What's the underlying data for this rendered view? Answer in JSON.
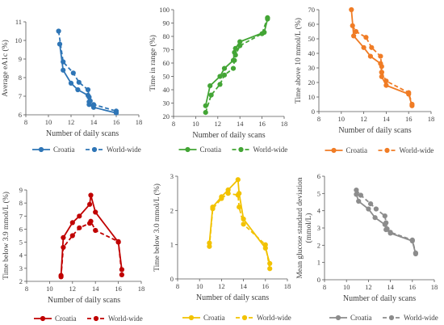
{
  "chart_data": [
    {
      "type": "line",
      "ylabel": "Average eA1c (%)",
      "xlabel": "Number of daily scans",
      "xlim": [
        8,
        18
      ],
      "ylim": [
        6,
        11
      ],
      "xticks": [
        "8",
        "10",
        "12",
        "14",
        "16",
        "18"
      ],
      "yticks": [
        "6",
        "7",
        "8",
        "9",
        "10",
        "11"
      ],
      "grid": false,
      "legend": "bottom",
      "color": "#2e75b6",
      "series": [
        {
          "name": "Croatia",
          "style": "solid",
          "points": [
            [
              11.0,
              9.8
            ],
            [
              11.3,
              8.4
            ],
            [
              12.0,
              7.7
            ],
            [
              12.6,
              7.35
            ],
            [
              13.5,
              7.05
            ],
            [
              13.6,
              6.7
            ],
            [
              13.6,
              6.55
            ],
            [
              14.0,
              6.4
            ],
            [
              16.0,
              6.1
            ]
          ]
        },
        {
          "name": "World-wide",
          "style": "dashed",
          "points": [
            [
              10.9,
              10.5
            ],
            [
              11.3,
              8.85
            ],
            [
              12.2,
              8.25
            ],
            [
              12.7,
              7.75
            ],
            [
              13.5,
              7.35
            ],
            [
              13.6,
              6.95
            ],
            [
              13.7,
              6.75
            ],
            [
              14.0,
              6.55
            ],
            [
              16.0,
              6.2
            ]
          ]
        }
      ]
    },
    {
      "type": "line",
      "ylabel": "Time in range (%)",
      "xlabel": "Number of daily scans",
      "xlim": [
        8,
        18
      ],
      "ylim": [
        20,
        100
      ],
      "xticks": [
        "8",
        "10",
        "12",
        "14",
        "16",
        "18"
      ],
      "yticks": [
        "20",
        "30",
        "40",
        "50",
        "60",
        "70",
        "80",
        "90",
        "100"
      ],
      "grid": false,
      "legend": "bottom",
      "color": "#43a535",
      "series": [
        {
          "name": "Croatia",
          "style": "solid",
          "points": [
            [
              10.9,
              28
            ],
            [
              11.3,
              43
            ],
            [
              12.2,
              50
            ],
            [
              12.6,
              56
            ],
            [
              13.4,
              62
            ],
            [
              13.5,
              68
            ],
            [
              13.6,
              71
            ],
            [
              14.0,
              76
            ],
            [
              16.2,
              83
            ],
            [
              16.5,
              93
            ]
          ]
        },
        {
          "name": "World-wide",
          "style": "dashed",
          "points": [
            [
              10.9,
              23
            ],
            [
              11.4,
              36
            ],
            [
              12.2,
              44
            ],
            [
              12.6,
              51
            ],
            [
              13.4,
              56
            ],
            [
              13.5,
              62
            ],
            [
              13.6,
              66
            ],
            [
              14.0,
              73
            ],
            [
              16.0,
              82
            ],
            [
              16.5,
              94
            ]
          ]
        }
      ]
    },
    {
      "type": "line",
      "ylabel": "Time above 10 mmol/L (%)",
      "xlabel": "Number of daily scans",
      "xlim": [
        8,
        18
      ],
      "ylim": [
        0,
        70
      ],
      "xticks": [
        "8",
        "10",
        "12",
        "14",
        "16",
        "18"
      ],
      "yticks": [
        "0",
        "10",
        "20",
        "30",
        "40",
        "50",
        "60",
        "70"
      ],
      "grid": false,
      "legend": "bottom",
      "color": "#f07c25",
      "series": [
        {
          "name": "Croatia",
          "style": "solid",
          "points": [
            [
              10.9,
              70
            ],
            [
              11.1,
              52
            ],
            [
              12.0,
              44
            ],
            [
              12.6,
              38
            ],
            [
              13.5,
              33
            ],
            [
              13.6,
              27
            ],
            [
              13.6,
              24
            ],
            [
              14.0,
              18
            ],
            [
              16.0,
              12
            ],
            [
              16.3,
              4
            ]
          ]
        },
        {
          "name": "World-wide",
          "style": "dashed",
          "points": [
            [
              11.0,
              59
            ],
            [
              11.3,
              55
            ],
            [
              12.2,
              51
            ],
            [
              12.7,
              44
            ],
            [
              13.5,
              38
            ],
            [
              13.6,
              31
            ],
            [
              13.6,
              27
            ],
            [
              14.0,
              21
            ],
            [
              16.0,
              13
            ],
            [
              16.3,
              5
            ]
          ]
        }
      ]
    },
    {
      "type": "line",
      "ylabel": "Time below 3.9 mmol/L (%)",
      "xlabel": "Number of daily scans",
      "xlim": [
        8,
        18
      ],
      "ylim": [
        2,
        9
      ],
      "xticks": [
        "8",
        "10",
        "12",
        "14",
        "16",
        "18"
      ],
      "yticks": [
        "2",
        "3",
        "4",
        "5",
        "6",
        "7",
        "8",
        "9"
      ],
      "grid": false,
      "legend": "bottom",
      "color": "#c00000",
      "series": [
        {
          "name": "Croatia",
          "style": "solid",
          "points": [
            [
              11.0,
              2.45
            ],
            [
              11.2,
              5.35
            ],
            [
              12.0,
              6.5
            ],
            [
              12.6,
              7.0
            ],
            [
              13.5,
              7.9
            ],
            [
              13.6,
              8.6
            ],
            [
              14.0,
              7.3
            ],
            [
              16.0,
              5.0
            ],
            [
              16.3,
              2.9
            ]
          ]
        },
        {
          "name": "World-wide",
          "style": "dashed",
          "points": [
            [
              11.0,
              2.35
            ],
            [
              11.2,
              4.6
            ],
            [
              12.0,
              5.5
            ],
            [
              12.6,
              6.1
            ],
            [
              13.5,
              6.45
            ],
            [
              13.6,
              6.6
            ],
            [
              14.0,
              5.9
            ],
            [
              16.0,
              5.05
            ],
            [
              16.3,
              2.5
            ]
          ]
        }
      ]
    },
    {
      "type": "line",
      "ylabel": "Time below 3.0 mmol/L (%)",
      "xlabel": "Number of daily scans",
      "xlim": [
        8,
        18
      ],
      "ylim": [
        0,
        3
      ],
      "xticks": [
        "8",
        "10",
        "12",
        "14",
        "16",
        "18"
      ],
      "yticks": [
        "0",
        "1",
        "2",
        "3"
      ],
      "grid": false,
      "legend": "bottom",
      "color": "#f2c200",
      "series": [
        {
          "name": "Croatia",
          "style": "solid",
          "points": [
            [
              10.9,
              1.05
            ],
            [
              11.2,
              2.1
            ],
            [
              12.0,
              2.4
            ],
            [
              12.6,
              2.6
            ],
            [
              13.5,
              2.9
            ],
            [
              13.6,
              2.5
            ],
            [
              14.0,
              1.75
            ],
            [
              16.0,
              0.9
            ],
            [
              16.4,
              0.45
            ]
          ]
        },
        {
          "name": "World-wide",
          "style": "dashed",
          "points": [
            [
              10.9,
              0.95
            ],
            [
              11.2,
              2.05
            ],
            [
              12.0,
              2.35
            ],
            [
              12.6,
              2.5
            ],
            [
              13.5,
              2.45
            ],
            [
              13.6,
              2.1
            ],
            [
              14.0,
              1.6
            ],
            [
              16.0,
              1.0
            ],
            [
              16.4,
              0.3
            ]
          ]
        }
      ]
    },
    {
      "type": "line",
      "ylabel": "Mean glucose standard deviation (mmol/L)",
      "xlabel": "Number of daily scans",
      "xlim": [
        8,
        18
      ],
      "ylim": [
        0,
        6
      ],
      "xticks": [
        "8",
        "10",
        "12",
        "14",
        "16",
        "18"
      ],
      "yticks": [
        "0",
        "1",
        "2",
        "3",
        "4",
        "5",
        "6"
      ],
      "grid": false,
      "legend": "bottom",
      "color": "#8c8c8c",
      "series": [
        {
          "name": "Croatia",
          "style": "solid",
          "points": [
            [
              10.9,
              4.95
            ],
            [
              11.1,
              4.55
            ],
            [
              12.0,
              4.1
            ],
            [
              12.6,
              3.6
            ],
            [
              13.5,
              3.2
            ],
            [
              13.6,
              2.9
            ],
            [
              14.0,
              2.7
            ],
            [
              16.0,
              2.25
            ],
            [
              16.3,
              1.5
            ]
          ]
        },
        {
          "name": "World-wide",
          "style": "dashed",
          "points": [
            [
              10.9,
              5.2
            ],
            [
              11.3,
              4.9
            ],
            [
              12.2,
              4.4
            ],
            [
              12.7,
              4.1
            ],
            [
              13.5,
              3.7
            ],
            [
              13.6,
              3.3
            ],
            [
              13.7,
              2.95
            ],
            [
              14.0,
              2.75
            ],
            [
              16.0,
              2.3
            ],
            [
              16.3,
              1.55
            ]
          ]
        }
      ]
    }
  ]
}
